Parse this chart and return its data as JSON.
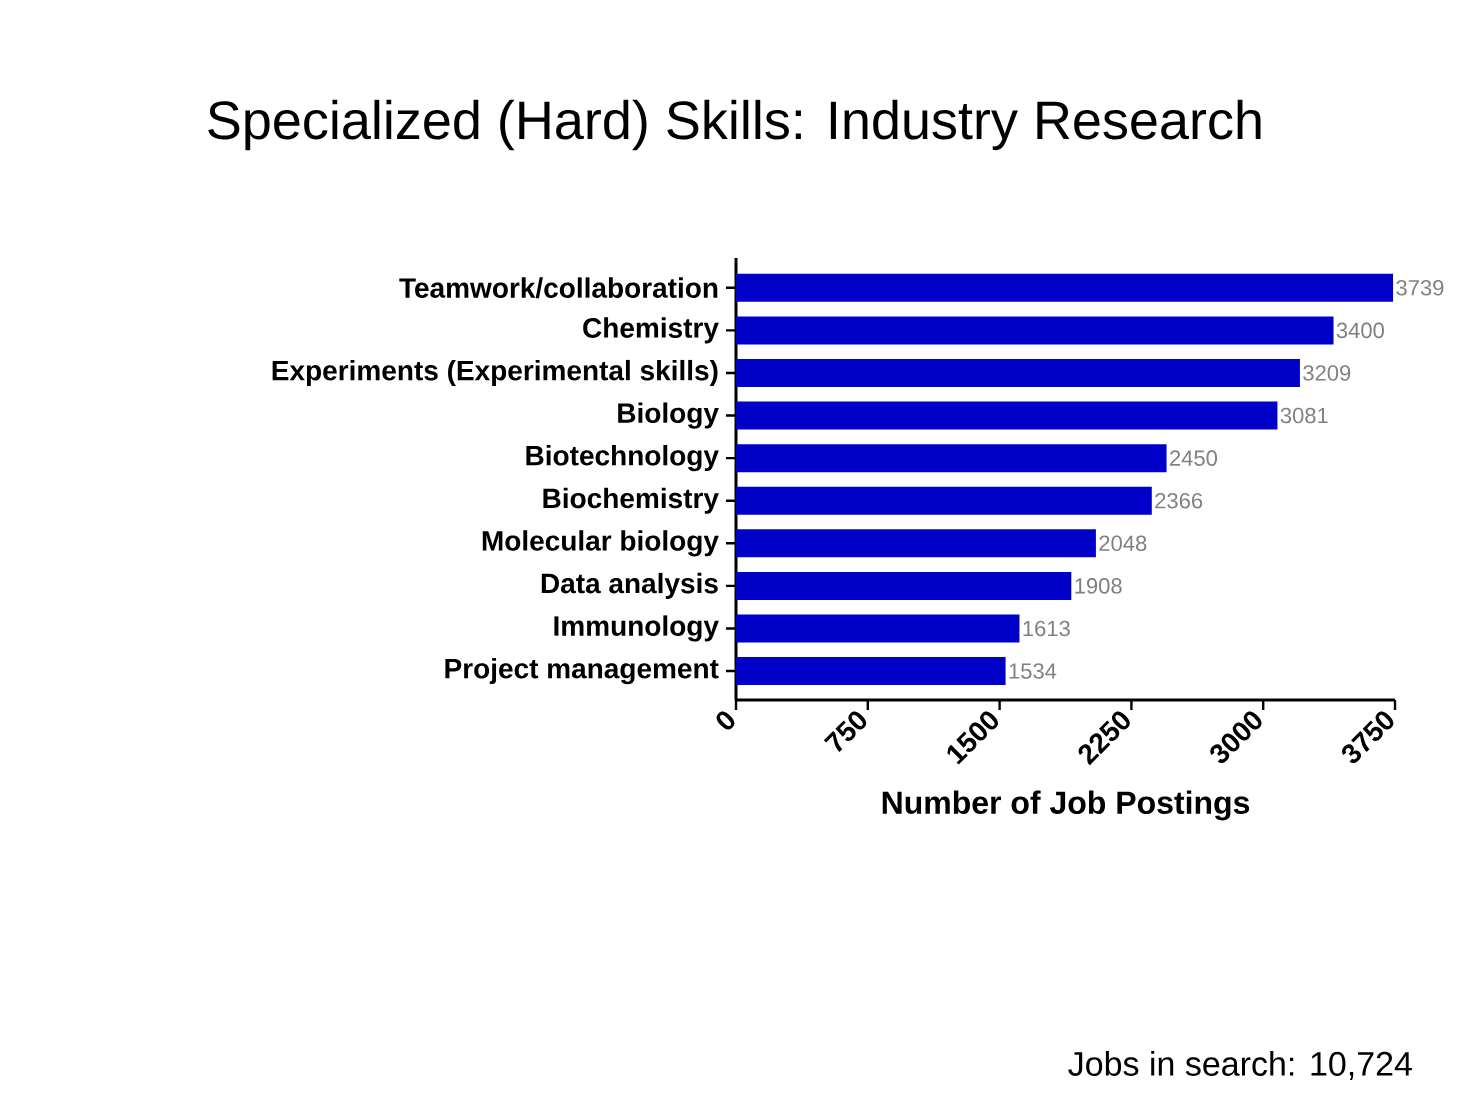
{
  "chart_data": {
    "type": "bar",
    "orientation": "horizontal",
    "title": "Specialized (Hard) Skills: Industry Research",
    "xlabel": "Number of Job Postings",
    "categories": [
      "Teamwork/collaboration",
      "Chemistry",
      "Experiments (Experimental skills)",
      "Biology",
      "Biotechnology",
      "Biochemistry",
      "Molecular biology",
      "Data analysis",
      "Immunology",
      "Project management"
    ],
    "values": [
      3739,
      3400,
      3209,
      3081,
      2450,
      2366,
      2048,
      1908,
      1613,
      1534
    ],
    "color": "#0000c8",
    "data_labels": true,
    "xlim": [
      0,
      3750
    ],
    "xticks": [
      0,
      750,
      1500,
      2250,
      3000,
      3750
    ],
    "annotations": [
      "Jobs in search: 10,724"
    ]
  }
}
